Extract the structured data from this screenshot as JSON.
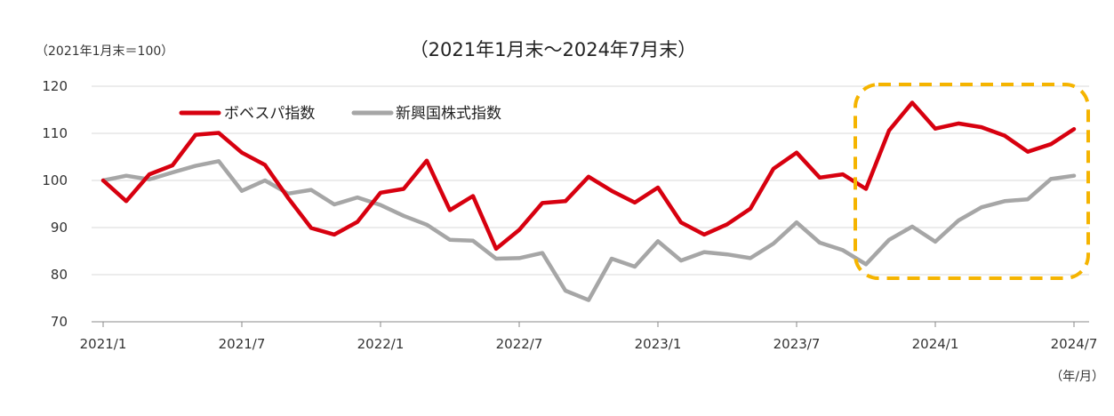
{
  "chart_data": {
    "type": "line",
    "title": "（2021年1月末～2024年7月末）",
    "unit_label": "（2021年1月末＝100）",
    "xlabel": "（年/月）",
    "ylabel": "",
    "ylim": [
      70,
      120
    ],
    "yticks": [
      70,
      80,
      90,
      100,
      110,
      120
    ],
    "grid": true,
    "legend_position": "top-left",
    "x_tick_labels": [
      "2021/1",
      "2021/7",
      "2022/1",
      "2022/7",
      "2023/1",
      "2023/7",
      "2024/1",
      "2024/7"
    ],
    "x_tick_months": [
      0,
      6,
      12,
      18,
      24,
      30,
      36,
      42
    ],
    "x": [
      "2021/1",
      "2021/2",
      "2021/3",
      "2021/4",
      "2021/5",
      "2021/6",
      "2021/7",
      "2021/8",
      "2021/9",
      "2021/10",
      "2021/11",
      "2021/12",
      "2022/1",
      "2022/2",
      "2022/3",
      "2022/4",
      "2022/5",
      "2022/6",
      "2022/7",
      "2022/8",
      "2022/9",
      "2022/10",
      "2022/11",
      "2022/12",
      "2023/1",
      "2023/2",
      "2023/3",
      "2023/4",
      "2023/5",
      "2023/6",
      "2023/7",
      "2023/8",
      "2023/9",
      "2023/10",
      "2023/11",
      "2023/12",
      "2024/1",
      "2024/2",
      "2024/3",
      "2024/4",
      "2024/5",
      "2024/6",
      "2024/7"
    ],
    "series": [
      {
        "name": "ボベスパ指数",
        "color": "#d7000f",
        "values": [
          100.0,
          95.6,
          101.3,
          103.2,
          109.7,
          110.1,
          105.9,
          103.3,
          96.3,
          89.9,
          88.5,
          91.2,
          97.4,
          98.2,
          104.2,
          93.7,
          96.7,
          85.5,
          89.5,
          95.2,
          95.6,
          100.8,
          97.8,
          95.3,
          98.5,
          91.1,
          88.5,
          90.7,
          94.0,
          102.5,
          105.9,
          100.6,
          101.3,
          98.2,
          110.6,
          116.5,
          111.0,
          112.1,
          111.3,
          109.5,
          106.1,
          107.7,
          110.9
        ]
      },
      {
        "name": "新興国株式指数",
        "color": "#a6a6a6",
        "values": [
          100.0,
          101.0,
          100.2,
          101.7,
          103.1,
          104.1,
          97.8,
          100.0,
          97.2,
          98.0,
          94.9,
          96.4,
          94.8,
          92.5,
          90.6,
          87.4,
          87.2,
          83.4,
          83.5,
          84.6,
          76.6,
          74.6,
          83.4,
          81.7,
          87.1,
          83.0,
          84.8,
          84.3,
          83.5,
          86.6,
          91.1,
          86.8,
          85.2,
          82.2,
          87.4,
          90.2,
          87.0,
          91.5,
          94.3,
          95.6,
          96.0,
          100.3,
          101.0
        ]
      }
    ],
    "highlight_color": "#f5b400"
  }
}
